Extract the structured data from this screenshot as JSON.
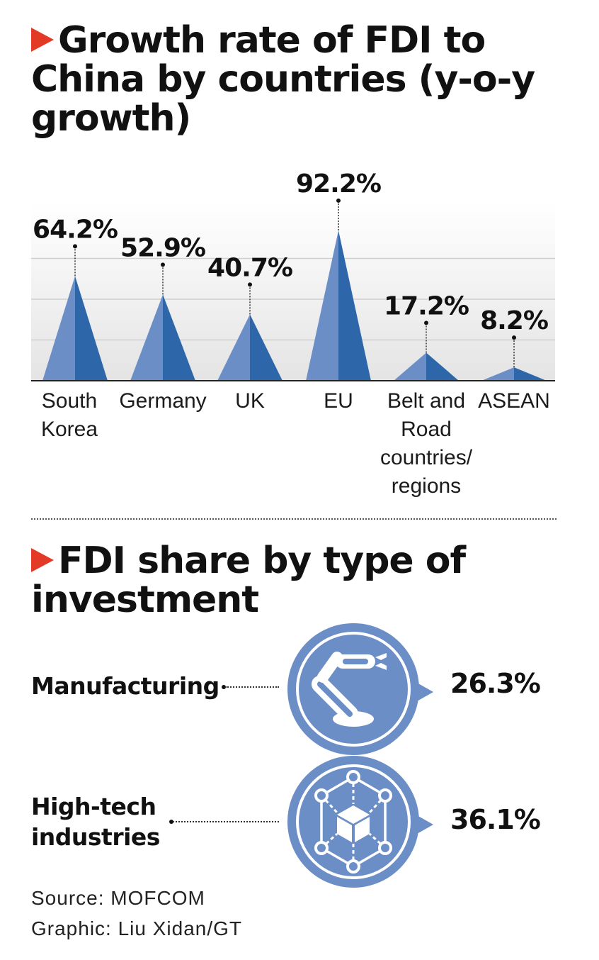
{
  "chart_title": "Growth rate of FDI to China by countries (y-o-y growth)",
  "section2_title": "FDI share by type of investment",
  "chart_data": [
    {
      "type": "bar",
      "title": "Growth rate of FDI to China by countries (y-o-y growth)",
      "categories": [
        "South Korea",
        "Germany",
        "UK",
        "EU",
        "Belt and Road countries/ regions",
        "ASEAN"
      ],
      "category_lines": [
        [
          "South",
          "Korea"
        ],
        [
          "Germany"
        ],
        [
          "UK"
        ],
        [
          "EU"
        ],
        [
          "Belt and",
          "Road",
          "countries/",
          "regions"
        ],
        [
          "ASEAN"
        ]
      ],
      "values": [
        64.2,
        52.9,
        40.7,
        92.2,
        17.2,
        8.2
      ],
      "value_labels": [
        "64.2%",
        "52.9%",
        "40.7%",
        "92.2%",
        "17.2%",
        "8.2%"
      ],
      "unit": "%",
      "ylim": [
        0,
        100
      ],
      "grid": true,
      "colors": {
        "light": "#6b8ec6",
        "dark": "#2e67a9",
        "grid": "#cfcfcf",
        "bg_top": "#ffffff",
        "bg_bottom": "#e6e6e6"
      }
    },
    {
      "type": "table",
      "title": "FDI share by type of investment",
      "rows": [
        {
          "label": "Manufacturing",
          "value": 26.3,
          "value_label": "26.3%",
          "icon": "robot-arm-icon"
        },
        {
          "label": "High-tech industries",
          "label_lines": [
            "High-tech",
            "industries"
          ],
          "value": 36.1,
          "value_label": "36.1%",
          "icon": "network-cube-icon"
        }
      ],
      "colors": {
        "circle": "#6b8ec6"
      }
    }
  ],
  "source": "Source: MOFCOM",
  "credit": "Graphic: Liu Xidan/GT",
  "accent_color": "#e23a26"
}
